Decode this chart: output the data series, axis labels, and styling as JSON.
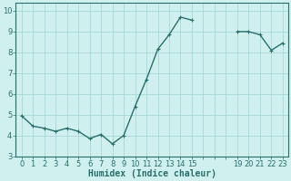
{
  "x": [
    0,
    1,
    2,
    3,
    4,
    5,
    6,
    7,
    8,
    9,
    10,
    11,
    12,
    13,
    14,
    15,
    19,
    20,
    21,
    22,
    23
  ],
  "y": [
    4.95,
    4.45,
    4.35,
    4.2,
    4.35,
    4.2,
    3.85,
    4.05,
    3.6,
    4.0,
    5.4,
    6.7,
    8.15,
    8.85,
    9.7,
    9.55,
    9.0,
    9.0,
    8.85,
    8.1,
    8.45
  ],
  "line_color": "#2a6e6e",
  "marker": "+",
  "marker_size": 3,
  "marker_linewidth": 0.8,
  "bg_color": "#cff0ee",
  "grid_color": "#a8d8d4",
  "xlabel": "Humidex (Indice chaleur)",
  "xlabel_fontsize": 7,
  "xlim": [
    -0.5,
    23.5
  ],
  "ylim": [
    3.0,
    10.4
  ],
  "yticks": [
    3,
    4,
    5,
    6,
    7,
    8,
    9,
    10
  ],
  "all_xticks": [
    0,
    1,
    2,
    3,
    4,
    5,
    6,
    7,
    8,
    9,
    10,
    11,
    12,
    13,
    14,
    15,
    16,
    17,
    18,
    19,
    20,
    21,
    22,
    23
  ],
  "labeled_xticks": [
    0,
    1,
    2,
    3,
    4,
    5,
    6,
    7,
    8,
    9,
    10,
    11,
    12,
    13,
    14,
    15,
    19,
    20,
    21,
    22,
    23
  ],
  "labeled_xtick_labels": [
    "0",
    "1",
    "2",
    "3",
    "4",
    "5",
    "6",
    "7",
    "8",
    "9",
    "10",
    "11",
    "12",
    "13",
    "14",
    "15",
    "19",
    "20",
    "21",
    "22",
    "23"
  ],
  "tick_fontsize": 6,
  "linewidth": 1.0,
  "spine_color": "#2a6e6e"
}
